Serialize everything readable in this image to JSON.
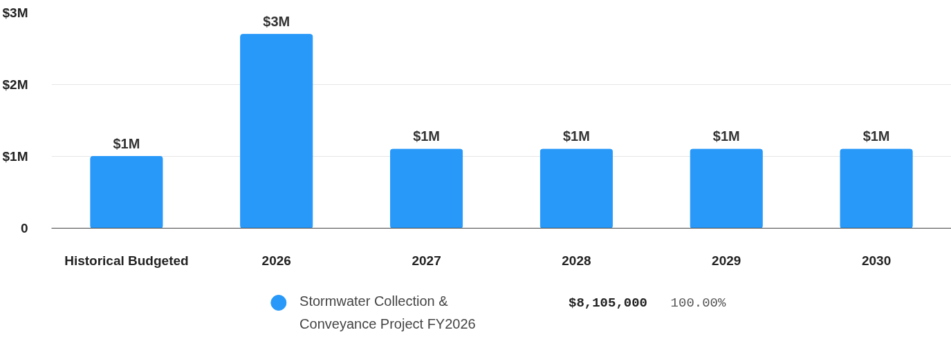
{
  "chart_data": {
    "type": "bar",
    "categories": [
      "Historical Budgeted",
      "2026",
      "2027",
      "2028",
      "2029",
      "2030"
    ],
    "series": [
      {
        "name": "Stormwater Collection & Conveyance Project FY2026",
        "color": "#2899f9",
        "values": [
          1.0,
          2.7,
          1.1,
          1.1,
          1.1,
          1.1
        ],
        "value_labels": [
          "$1M",
          "$3M",
          "$1M",
          "$1M",
          "$1M",
          "$1M"
        ]
      }
    ],
    "ylim": [
      0,
      3
    ],
    "yticks": [
      {
        "value": 0,
        "label": "0"
      },
      {
        "value": 1,
        "label": "$1M"
      },
      {
        "value": 2,
        "label": "$2M"
      },
      {
        "value": 3,
        "label": "$3M"
      }
    ],
    "grid": "y",
    "legend": "bottom",
    "annotations": [
      "$8,105,000",
      "100.00%"
    ]
  }
}
